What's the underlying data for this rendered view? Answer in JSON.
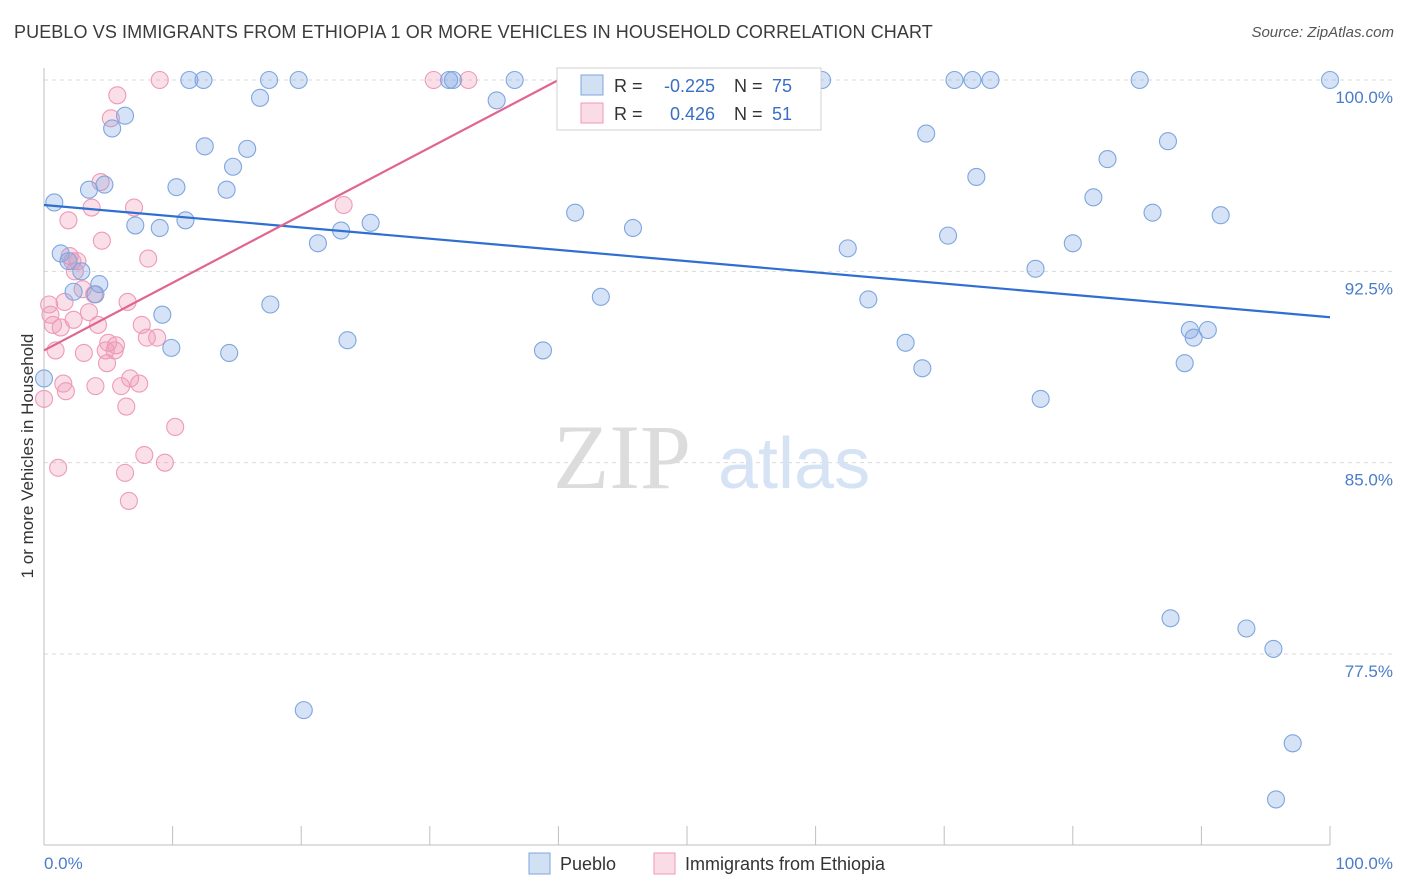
{
  "title": "PUEBLO VS IMMIGRANTS FROM ETHIOPIA 1 OR MORE VEHICLES IN HOUSEHOLD CORRELATION CHART",
  "source": "Source: ZipAtlas.com",
  "watermark": {
    "zip": "ZIP",
    "atlas": "atlas"
  },
  "colors": {
    "pueblo": "#7ea6e0",
    "pueblo_fill": "rgba(126,166,224,0.32)",
    "pueblo_line": "#2f6fd1",
    "ethiopia": "#ee9ab8",
    "ethiopia_fill": "rgba(238,154,184,0.32)",
    "ethiopia_line": "#e06591",
    "tick_text": "#4a7cc9"
  },
  "legend": {
    "rows": [
      {
        "r_label": "R =",
        "r_value": "-0.225",
        "n_label": "N =",
        "n_value": "75"
      },
      {
        "r_label": "R =",
        "r_value": "0.426",
        "n_label": "N =",
        "n_value": "51"
      }
    ]
  },
  "chart_data": {
    "type": "scatter",
    "xlabel": "",
    "ylabel": "1 or more Vehicles in Household",
    "xlim": [
      0,
      100
    ],
    "ylim": [
      71.0,
      101.2
    ],
    "x_tick_labels": [
      "0.0%",
      "100.0%"
    ],
    "y_ticks": [
      {
        "value": 100.0,
        "label": "100.0%"
      },
      {
        "value": 92.5,
        "label": "92.5%"
      },
      {
        "value": 85.0,
        "label": "85.0%"
      },
      {
        "value": 77.5,
        "label": "77.5%"
      }
    ],
    "grid": true,
    "legend_position": "top-center",
    "series": [
      {
        "name": "Pueblo",
        "R": -0.225,
        "N": 75,
        "trend": {
          "x0": 0,
          "y0": 95.1,
          "x1": 100,
          "y1": 90.7
        },
        "points": [
          [
            0.0,
            88.3
          ],
          [
            0.8,
            95.2
          ],
          [
            1.3,
            93.2
          ],
          [
            1.9,
            92.9
          ],
          [
            2.3,
            91.7
          ],
          [
            2.9,
            92.5
          ],
          [
            3.5,
            95.7
          ],
          [
            4.0,
            91.6
          ],
          [
            4.3,
            92.0
          ],
          [
            4.7,
            95.9
          ],
          [
            5.3,
            98.1
          ],
          [
            6.3,
            98.6
          ],
          [
            7.1,
            94.3
          ],
          [
            9.0,
            94.2
          ],
          [
            9.2,
            90.8
          ],
          [
            9.9,
            89.5
          ],
          [
            10.3,
            95.8
          ],
          [
            11.0,
            94.5
          ],
          [
            11.3,
            100.0
          ],
          [
            12.4,
            100.0
          ],
          [
            12.5,
            97.4
          ],
          [
            14.2,
            95.7
          ],
          [
            14.4,
            89.3
          ],
          [
            14.7,
            96.6
          ],
          [
            15.8,
            97.3
          ],
          [
            16.8,
            99.3
          ],
          [
            17.5,
            100.0
          ],
          [
            17.6,
            91.2
          ],
          [
            19.8,
            100.0
          ],
          [
            20.2,
            75.3
          ],
          [
            21.3,
            93.6
          ],
          [
            23.1,
            94.1
          ],
          [
            23.6,
            89.8
          ],
          [
            25.4,
            94.4
          ],
          [
            31.5,
            100.0
          ],
          [
            31.8,
            100.0
          ],
          [
            35.2,
            99.2
          ],
          [
            36.6,
            100.0
          ],
          [
            38.8,
            89.4
          ],
          [
            41.3,
            94.8
          ],
          [
            42.2,
            100.0
          ],
          [
            43.3,
            91.5
          ],
          [
            45.8,
            94.2
          ],
          [
            47.0,
            100.0
          ],
          [
            59.5,
            100.0
          ],
          [
            60.5,
            100.0
          ],
          [
            62.5,
            93.4
          ],
          [
            64.1,
            91.4
          ],
          [
            67.0,
            89.7
          ],
          [
            68.3,
            88.7
          ],
          [
            68.6,
            97.9
          ],
          [
            70.3,
            93.9
          ],
          [
            70.8,
            100.0
          ],
          [
            72.2,
            100.0
          ],
          [
            72.5,
            96.2
          ],
          [
            73.6,
            100.0
          ],
          [
            77.1,
            92.6
          ],
          [
            77.5,
            87.5
          ],
          [
            80.0,
            93.6
          ],
          [
            81.6,
            95.4
          ],
          [
            82.7,
            96.9
          ],
          [
            85.2,
            100.0
          ],
          [
            86.2,
            94.8
          ],
          [
            87.4,
            97.6
          ],
          [
            87.6,
            78.9
          ],
          [
            88.7,
            88.9
          ],
          [
            89.1,
            90.2
          ],
          [
            89.4,
            89.9
          ],
          [
            90.5,
            90.2
          ],
          [
            91.5,
            94.7
          ],
          [
            93.5,
            78.5
          ],
          [
            95.6,
            77.7
          ],
          [
            97.1,
            74.0
          ],
          [
            95.8,
            71.8
          ],
          [
            100.0,
            100.0
          ]
        ]
      },
      {
        "name": "Immigrants from Ethiopia",
        "R": 0.426,
        "N": 51,
        "trend": {
          "x0": 0,
          "y0": 89.4,
          "x1": 40,
          "y1": 100.0
        },
        "points": [
          [
            0.0,
            87.5
          ],
          [
            0.4,
            91.2
          ],
          [
            0.5,
            90.8
          ],
          [
            0.7,
            90.4
          ],
          [
            0.9,
            89.4
          ],
          [
            1.1,
            84.8
          ],
          [
            1.3,
            90.3
          ],
          [
            1.5,
            88.1
          ],
          [
            1.6,
            91.3
          ],
          [
            1.7,
            87.8
          ],
          [
            1.9,
            94.5
          ],
          [
            2.0,
            93.1
          ],
          [
            2.2,
            92.9
          ],
          [
            2.3,
            90.6
          ],
          [
            2.4,
            92.5
          ],
          [
            2.6,
            92.9
          ],
          [
            3.0,
            91.8
          ],
          [
            3.1,
            89.3
          ],
          [
            3.5,
            90.9
          ],
          [
            3.7,
            95.0
          ],
          [
            3.9,
            91.6
          ],
          [
            4.0,
            88.0
          ],
          [
            4.2,
            90.4
          ],
          [
            4.4,
            96.0
          ],
          [
            4.5,
            93.7
          ],
          [
            4.8,
            89.4
          ],
          [
            4.9,
            88.9
          ],
          [
            5.0,
            89.7
          ],
          [
            5.2,
            98.5
          ],
          [
            5.5,
            89.4
          ],
          [
            5.6,
            89.6
          ],
          [
            5.7,
            99.4
          ],
          [
            6.0,
            88.0
          ],
          [
            6.3,
            84.6
          ],
          [
            6.4,
            87.2
          ],
          [
            6.5,
            91.3
          ],
          [
            6.6,
            83.5
          ],
          [
            6.7,
            88.3
          ],
          [
            7.0,
            95.0
          ],
          [
            7.4,
            88.1
          ],
          [
            7.6,
            90.4
          ],
          [
            7.8,
            85.3
          ],
          [
            8.0,
            89.9
          ],
          [
            8.1,
            93.0
          ],
          [
            8.8,
            89.9
          ],
          [
            9.0,
            100.0
          ],
          [
            9.4,
            85.0
          ],
          [
            10.2,
            86.4
          ],
          [
            23.3,
            95.1
          ],
          [
            30.3,
            100.0
          ],
          [
            33.0,
            100.0
          ]
        ]
      }
    ]
  },
  "bottom_legend": [
    "Pueblo",
    "Immigrants from Ethiopia"
  ]
}
